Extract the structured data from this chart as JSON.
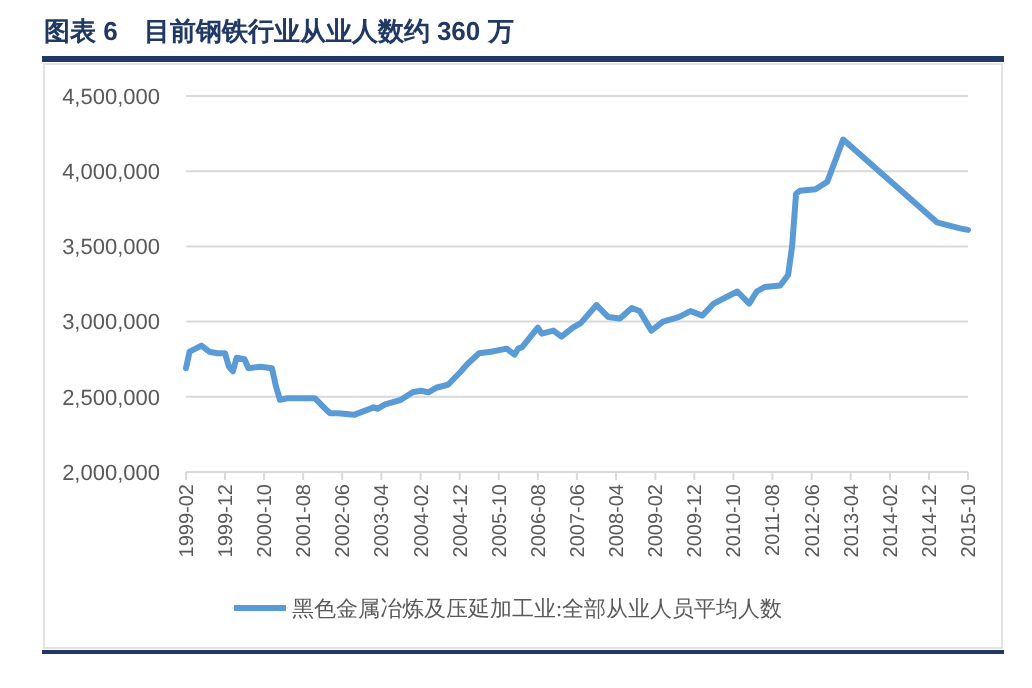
{
  "chart_data": {
    "type": "line",
    "title": "图表 6　目前钢铁行业从业人数约 360 万",
    "x": [
      "1999-02",
      "1999-03",
      "1999-06",
      "1999-08",
      "1999-10",
      "1999-12",
      "2000-01",
      "2000-02",
      "2000-03",
      "2000-05",
      "2000-06",
      "2000-09",
      "2000-12",
      "2001-01",
      "2001-02",
      "2001-04",
      "2001-11",
      "2002-02",
      "2002-03",
      "2002-05",
      "2002-09",
      "2002-11",
      "2003-02",
      "2003-03",
      "2003-05",
      "2003-09",
      "2003-12",
      "2004-02",
      "2004-04",
      "2004-06",
      "2004-09",
      "2004-12",
      "2005-02",
      "2005-05",
      "2005-08",
      "2005-12",
      "2006-02",
      "2006-03",
      "2006-04",
      "2006-08",
      "2006-09",
      "2006-12",
      "2007-02",
      "2007-05",
      "2007-07",
      "2007-11",
      "2008-02",
      "2008-05",
      "2008-08",
      "2008-10",
      "2009-01",
      "2009-04",
      "2009-08",
      "2009-11",
      "2010-02",
      "2010-05",
      "2010-08",
      "2010-11",
      "2011-02",
      "2011-04",
      "2011-06",
      "2011-10",
      "2011-12",
      "2012-01",
      "2012-02",
      "2012-03",
      "2012-07",
      "2012-10",
      "2013-02",
      "2015-02",
      "2015-05",
      "2015-08",
      "2015-10"
    ],
    "series": [
      {
        "name": "黑色金属冶炼及压延加工业:全部从业人员平均人数",
        "color": "#5b9bd5",
        "values": [
          2690000,
          2800000,
          2840000,
          2800000,
          2790000,
          2790000,
          2700000,
          2670000,
          2760000,
          2750000,
          2690000,
          2700000,
          2690000,
          2570000,
          2480000,
          2490000,
          2490000,
          2410000,
          2390000,
          2390000,
          2380000,
          2400000,
          2430000,
          2420000,
          2450000,
          2480000,
          2530000,
          2540000,
          2530000,
          2560000,
          2580000,
          2660000,
          2720000,
          2790000,
          2800000,
          2820000,
          2780000,
          2820000,
          2830000,
          2960000,
          2920000,
          2940000,
          2900000,
          2960000,
          2990000,
          3110000,
          3030000,
          3020000,
          3090000,
          3070000,
          2940000,
          3000000,
          3030000,
          3070000,
          3040000,
          3120000,
          3160000,
          3200000,
          3120000,
          3200000,
          3230000,
          3240000,
          3310000,
          3500000,
          3850000,
          3870000,
          3880000,
          3930000,
          4210000,
          3660000,
          3640000,
          3620000,
          3610000
        ]
      }
    ],
    "xlim": [
      "1999-02",
      "2015-10"
    ],
    "xticks": [
      "1999-02",
      "1999-12",
      "2000-10",
      "2001-08",
      "2002-06",
      "2003-04",
      "2004-02",
      "2004-12",
      "2005-10",
      "2006-08",
      "2007-06",
      "2008-04",
      "2009-02",
      "2009-12",
      "2010-10",
      "2011-08",
      "2012-06",
      "2013-04",
      "2014-02",
      "2014-12",
      "2015-10"
    ],
    "ylim": [
      2000000,
      4500000
    ],
    "yticks": [
      {
        "value": 2000000,
        "label": "2,000,000"
      },
      {
        "value": 2500000,
        "label": "2,500,000"
      },
      {
        "value": 3000000,
        "label": "3,000,000"
      },
      {
        "value": 3500000,
        "label": "3,500,000"
      },
      {
        "value": 4000000,
        "label": "4,000,000"
      },
      {
        "value": 4500000,
        "label": "4,500,000"
      }
    ],
    "grid": "y",
    "legend": "bottom",
    "marker": "none",
    "line_style": "solid"
  }
}
